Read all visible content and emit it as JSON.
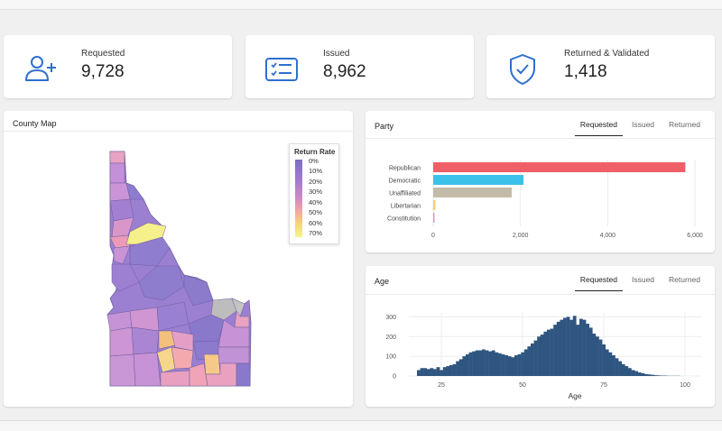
{
  "stats": [
    {
      "label": "Requested",
      "value": "9,728",
      "icon": "add-user-icon"
    },
    {
      "label": "Issued",
      "value": "8,962",
      "icon": "ballot-list-icon"
    },
    {
      "label": "Returned & Validated",
      "value": "1,418",
      "icon": "shield-check-icon"
    }
  ],
  "map": {
    "title": "County Map",
    "legend_title": "Return Rate",
    "legend_ticks": [
      "0%",
      "10%",
      "20%",
      "30%",
      "40%",
      "50%",
      "60%",
      "70%"
    ]
  },
  "party": {
    "title": "Party",
    "tabs": [
      "Requested",
      "Issued",
      "Returned"
    ],
    "active_tab": "Requested"
  },
  "age": {
    "title": "Age",
    "tabs": [
      "Requested",
      "Issued",
      "Returned"
    ],
    "active_tab": "Requested"
  },
  "colors": {
    "icon_blue": "#2f6fd0",
    "republican": "#ef5f67",
    "democratic": "#3cc1ea",
    "unaffiliated": "#c3bba7",
    "libertarian": "#f6cf72",
    "constitution": "#d99ac1",
    "age_bar": "#2f5680"
  },
  "chart_data": [
    {
      "type": "bar",
      "orientation": "horizontal",
      "categories": [
        "Republican",
        "Democratic",
        "Unaffiliated",
        "Libertarian",
        "Constitution"
      ],
      "values": [
        5780,
        2070,
        1800,
        50,
        30
      ],
      "xticks": [
        "0",
        "2,000",
        "4,000",
        "6,000"
      ],
      "xlim": [
        0,
        6000
      ],
      "grid": true
    },
    {
      "type": "bar",
      "title": "",
      "xlabel": "Age",
      "ylabel": "",
      "x": [
        18,
        19,
        20,
        21,
        22,
        23,
        24,
        25,
        26,
        27,
        28,
        29,
        30,
        31,
        32,
        33,
        34,
        35,
        36,
        37,
        38,
        39,
        40,
        41,
        42,
        43,
        44,
        45,
        46,
        47,
        48,
        49,
        50,
        51,
        52,
        53,
        54,
        55,
        56,
        57,
        58,
        59,
        60,
        61,
        62,
        63,
        64,
        65,
        66,
        67,
        68,
        69,
        70,
        71,
        72,
        73,
        74,
        75,
        76,
        77,
        78,
        79,
        80,
        81,
        82,
        83,
        84,
        85,
        86,
        87,
        88,
        89,
        90,
        91,
        92,
        93,
        94,
        95,
        96,
        97,
        98,
        99,
        100,
        101,
        102
      ],
      "values": [
        30,
        40,
        40,
        35,
        40,
        35,
        45,
        30,
        45,
        50,
        55,
        60,
        75,
        85,
        100,
        110,
        120,
        125,
        130,
        130,
        135,
        130,
        125,
        130,
        120,
        115,
        110,
        105,
        100,
        95,
        105,
        110,
        120,
        135,
        150,
        165,
        180,
        200,
        210,
        225,
        235,
        240,
        260,
        275,
        285,
        295,
        300,
        285,
        305,
        260,
        290,
        285,
        265,
        245,
        215,
        200,
        185,
        160,
        135,
        120,
        105,
        90,
        75,
        60,
        50,
        40,
        30,
        25,
        18,
        14,
        10,
        8,
        6,
        4,
        3,
        2,
        2,
        1,
        1,
        1,
        1,
        0,
        0,
        0,
        0
      ],
      "xticks": [
        25,
        50,
        75,
        100
      ],
      "yticks": [
        0,
        100,
        200,
        300
      ],
      "xlim": [
        15,
        105
      ],
      "ylim": [
        0,
        320
      ],
      "grid": true
    }
  ]
}
